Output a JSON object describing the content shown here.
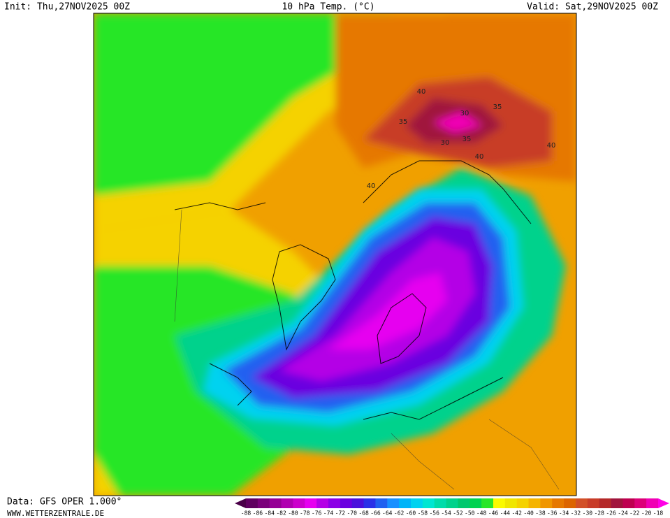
{
  "header": {
    "init": "Init: Thu,27NOV2025 00Z",
    "title": "10 hPa Temp. (°C)",
    "valid": "Valid: Sat,29NOV2025 00Z"
  },
  "footer": {
    "source": "Data: GFS OPER 1.000°",
    "site": "WWW.WETTERZENTRALE.DE"
  },
  "contour_labels": [
    40,
    35,
    30,
    35,
    30,
    35,
    40,
    40,
    40
  ],
  "legend": {
    "labels": [
      -88,
      -86,
      -84,
      -82,
      -80,
      -78,
      -76,
      -74,
      -72,
      -70,
      -68,
      -66,
      -64,
      -62,
      -60,
      -58,
      -56,
      -54,
      -52,
      -50,
      -48,
      -46,
      -44,
      -42,
      -40,
      -38,
      -36,
      -34,
      -32,
      -30,
      -28,
      -26,
      -24,
      -22,
      -20,
      -18
    ],
    "colors": [
      "#4a0048",
      "#600060",
      "#7a007a",
      "#950095",
      "#b000b0",
      "#cc00cc",
      "#e600f0",
      "#b400e6",
      "#8c00e6",
      "#6a00e0",
      "#4a10dc",
      "#2a30e8",
      "#2060f0",
      "#1890ff",
      "#00b4f8",
      "#00d2f0",
      "#00e6d2",
      "#00dcaa",
      "#00d28c",
      "#00c86e",
      "#00d250",
      "#28e628",
      "#fafa00",
      "#f0e600",
      "#f5d200",
      "#f5b400",
      "#f09600",
      "#e67800",
      "#dc6400",
      "#d25028",
      "#c83c28",
      "#b42828",
      "#a0143c",
      "#be0050",
      "#dc0078",
      "#f000b4",
      "#ff00e6"
    ]
  }
}
